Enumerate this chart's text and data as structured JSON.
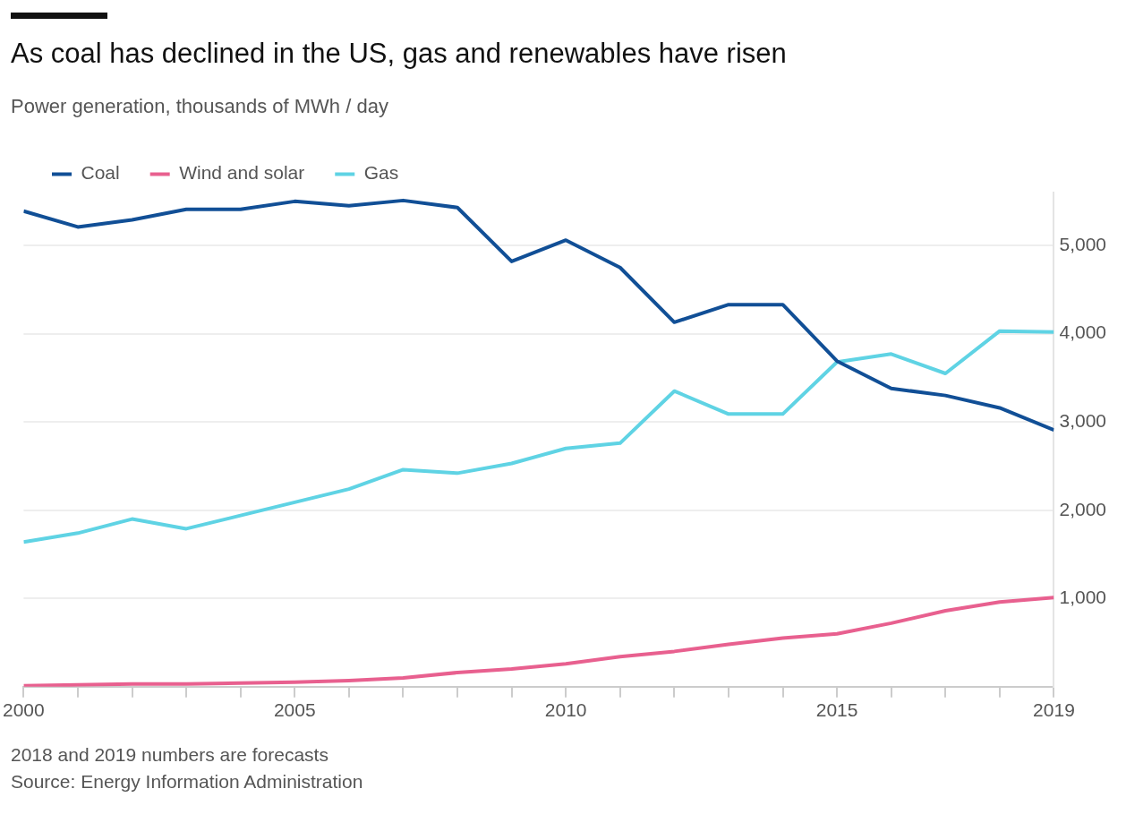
{
  "chart_data": {
    "type": "line",
    "title": "As coal has declined in the US, gas and renewables have risen",
    "subtitle": "Power generation, thousands of MWh / day",
    "x": [
      2000,
      2001,
      2002,
      2003,
      2004,
      2005,
      2006,
      2007,
      2008,
      2009,
      2010,
      2011,
      2012,
      2013,
      2014,
      2015,
      2016,
      2017,
      2018,
      2019
    ],
    "series": [
      {
        "name": "Coal",
        "color": "#114f96",
        "values": [
          5390,
          5210,
          5290,
          5410,
          5410,
          5500,
          5450,
          5510,
          5430,
          4820,
          5060,
          4750,
          4130,
          4330,
          4330,
          3690,
          3380,
          3300,
          3160,
          2910
        ]
      },
      {
        "name": "Wind and solar",
        "color": "#e8608f",
        "values": [
          10,
          20,
          30,
          30,
          40,
          50,
          70,
          100,
          160,
          200,
          260,
          340,
          400,
          480,
          550,
          600,
          720,
          860,
          960,
          1010
        ]
      },
      {
        "name": "Gas",
        "color": "#5fd3e4",
        "values": [
          1640,
          1740,
          1900,
          1790,
          1940,
          2090,
          2240,
          2460,
          2420,
          2530,
          2700,
          2760,
          3350,
          3090,
          3090,
          3680,
          3770,
          3550,
          4030,
          4020
        ]
      }
    ],
    "xlim": [
      2000,
      2019
    ],
    "xticks": [
      2000,
      {
        "value": 2001,
        "label": null
      },
      {
        "value": 2002,
        "label": null
      },
      {
        "value": 2003,
        "label": null
      },
      {
        "value": 2004,
        "label": null
      },
      2005,
      {
        "value": 2006,
        "label": null
      },
      {
        "value": 2007,
        "label": null
      },
      {
        "value": 2008,
        "label": null
      },
      {
        "value": 2009,
        "label": null
      },
      2010,
      {
        "value": 2011,
        "label": null
      },
      {
        "value": 2012,
        "label": null
      },
      {
        "value": 2013,
        "label": null
      },
      {
        "value": 2014,
        "label": null
      },
      2015,
      {
        "value": 2016,
        "label": null
      },
      {
        "value": 2017,
        "label": null
      },
      {
        "value": 2018,
        "label": null
      },
      2019
    ],
    "ylim": [
      0,
      5600
    ],
    "yticks": [
      {
        "value": 1000,
        "label": "1,000"
      },
      {
        "value": 2000,
        "label": "2,000"
      },
      {
        "value": 3000,
        "label": "3,000"
      },
      {
        "value": 4000,
        "label": "4,000"
      },
      {
        "value": 5000,
        "label": "5,000"
      }
    ],
    "grid": "y",
    "legend": "top left",
    "marker": "none",
    "line_style": "solid",
    "annotations": [
      "2018 and 2019 numbers are forecasts",
      "Source: Energy Information Administration"
    ]
  }
}
